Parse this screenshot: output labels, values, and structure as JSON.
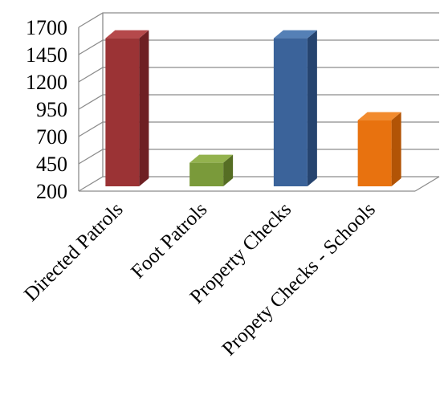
{
  "chart_data": {
    "type": "bar",
    "categories": [
      "Directed Patrols",
      "Foot Patrols",
      "Property Checks",
      "Propety Checks - Schools"
    ],
    "values": [
      1600,
      460,
      1600,
      850
    ],
    "ylim": [
      200,
      1700
    ],
    "yticks": [
      "200",
      "450",
      "700",
      "950",
      "1200",
      "1450",
      "1700"
    ],
    "grid": true,
    "style_3d": true,
    "colors": [
      {
        "front": "#9b3335",
        "side": "#6e1f23",
        "top": "#b5494b"
      },
      {
        "front": "#7a9a3a",
        "side": "#566e24",
        "top": "#93b24e"
      },
      {
        "front": "#3b639a",
        "side": "#26446f",
        "top": "#5580b6"
      },
      {
        "front": "#e8720f",
        "side": "#b25406",
        "top": "#f28b2e"
      }
    ]
  }
}
